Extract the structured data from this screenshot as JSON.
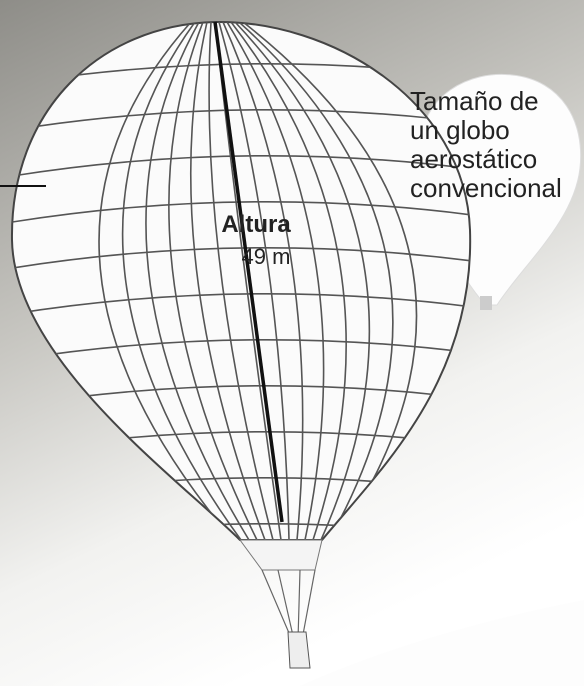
{
  "height_label": {
    "title": "Altura",
    "value": "49 m"
  },
  "comparison_label": {
    "lines": [
      "Tamaño de",
      "un globo",
      "aerostático",
      "convencional"
    ]
  }
}
